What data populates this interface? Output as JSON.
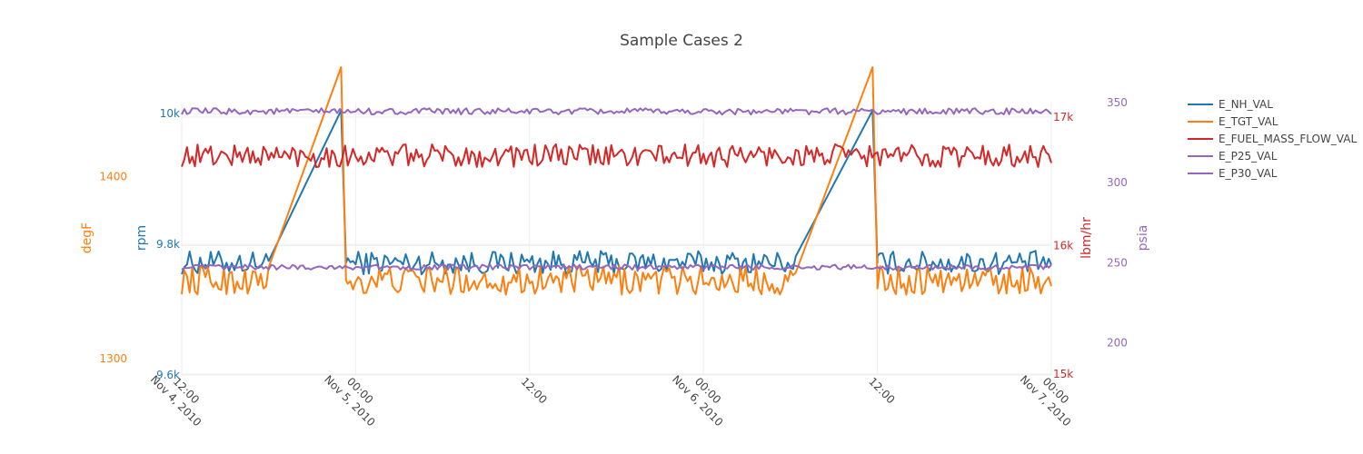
{
  "chart_data": {
    "type": "line",
    "title": "Sample Cases 2",
    "x": {
      "type": "date",
      "range": [
        "2010-11-04T12:00",
        "2010-11-07T00:00"
      ],
      "ticks": [
        {
          "value": "2010-11-04T12:00",
          "label": [
            "12:00",
            "Nov 4, 2010"
          ]
        },
        {
          "value": "2010-11-05T00:00",
          "label": [
            "00:00",
            "Nov 5, 2010"
          ]
        },
        {
          "value": "2010-11-05T12:00",
          "label": [
            "12:00"
          ]
        },
        {
          "value": "2010-11-06T00:00",
          "label": [
            "00:00",
            "Nov 6, 2010"
          ]
        },
        {
          "value": "2010-11-06T12:00",
          "label": [
            "12:00"
          ]
        },
        {
          "value": "2010-11-07T00:00",
          "label": [
            "00:00",
            "Nov 7, 2010"
          ]
        }
      ],
      "grid": true,
      "tick_angle_deg": 45
    },
    "axes": [
      {
        "id": "y_rpm",
        "title": "rpm",
        "side": "left",
        "color": "#1f77b4",
        "range": [
          9600,
          10017
        ],
        "ticks": [
          {
            "v": 9600,
            "label": "9.6k"
          },
          {
            "v": 9800,
            "label": "9.8k"
          },
          {
            "v": 10000,
            "label": "10k"
          }
        ]
      },
      {
        "id": "y_degF",
        "title": "degF",
        "side": "left",
        "color": "#ff7f0e",
        "range": [
          1270,
          1463
        ],
        "ticks": [
          {
            "v": 1300,
            "label": "1300"
          },
          {
            "v": 1400,
            "label": "1400"
          }
        ]
      },
      {
        "id": "y_lbm",
        "title": "lbm/hr",
        "side": "right",
        "color": "#d62728",
        "range": [
          14965,
          17085
        ],
        "ticks": [
          {
            "v": 15000,
            "label": "15k"
          },
          {
            "v": 16000,
            "label": "16k"
          },
          {
            "v": 17000,
            "label": "17k"
          }
        ]
      },
      {
        "id": "y_psia",
        "title": "psia",
        "side": "right",
        "color": "#9467bd",
        "range": [
          180,
          350
        ],
        "ticks": [
          {
            "v": 200,
            "label": "200"
          },
          {
            "v": 250,
            "label": "250"
          },
          {
            "v": 300,
            "label": "300"
          },
          {
            "v": 350,
            "label": "350"
          }
        ]
      }
    ],
    "series": [
      {
        "name": "E_NH_VAL",
        "axis": "y_rpm",
        "color": "#1f77b4",
        "base": 9772,
        "noise": 18,
        "bias": 1,
        "ramps": true,
        "ramp_peak": 10005
      },
      {
        "name": "E_TGT_VAL",
        "axis": "y_degF",
        "color": "#ff7f0e",
        "base": 1343,
        "noise": 8,
        "bias": 0,
        "ramps": true,
        "ramp_peak": 1460
      },
      {
        "name": "E_FUEL_MASS_FLOW_VAL",
        "axis": "y_lbm",
        "color": "#d62728",
        "base": 16700,
        "noise": 90,
        "bias": 0,
        "ramps": false
      },
      {
        "name": "E_P25_VAL",
        "axis": "y_psia",
        "color": "#9467bd",
        "base": 344.5,
        "noise": 2,
        "bias": 0,
        "ramps": false
      },
      {
        "name": "E_P30_VAL",
        "axis": "y_psia",
        "color": "#9467bd",
        "base": 247.3,
        "noise": 1.6,
        "bias": 0,
        "ramps": false
      }
    ],
    "ramp_segments": [
      {
        "start": "2010-11-04T18:00",
        "peak": "2010-11-04T23:00",
        "drop": "2010-11-04T23:20"
      },
      {
        "start": "2010-11-06T06:30",
        "peak": "2010-11-06T11:40",
        "drop": "2010-11-06T12:00"
      }
    ],
    "sample_count": 330,
    "legend": {
      "position": "top-right",
      "entries": [
        "E_NH_VAL",
        "E_TGT_VAL",
        "E_FUEL_MASS_FLOW_VAL",
        "E_P25_VAL",
        "E_P30_VAL"
      ]
    }
  }
}
